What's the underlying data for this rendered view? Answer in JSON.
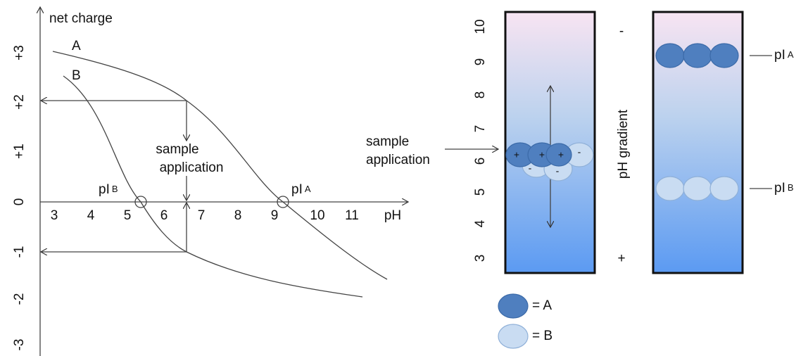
{
  "left_plot": {
    "y_axis_title": "net charge",
    "y_labels": [
      "+3",
      "+2",
      "+1",
      "0",
      "-1",
      "-2",
      "-3"
    ],
    "x_labels": [
      "3",
      "4",
      "5",
      "6",
      "7",
      "8",
      "9",
      "10",
      "11"
    ],
    "x_axis_title": "pH",
    "curve_a_label": "A",
    "curve_b_label": "B",
    "pi_b": {
      "main": "pI",
      "sub": "B"
    },
    "pi_a": {
      "main": "pI",
      "sub": "A"
    },
    "sample_application": [
      "sample",
      "application"
    ]
  },
  "right_gel": {
    "ph_labels": [
      "10",
      "9",
      "8",
      "7",
      "6",
      "5",
      "4",
      "3"
    ],
    "sample_application": [
      "sample",
      "application"
    ],
    "cathode": "-",
    "anode": "+",
    "gradient_label": "pH gradient",
    "charges": [
      "+",
      "+",
      "+",
      "-",
      "-",
      "-"
    ],
    "pi_a": {
      "main": "pI",
      "sub": "A"
    },
    "pi_b": {
      "main": "pI",
      "sub": "B"
    },
    "legend": [
      "= A",
      "= B"
    ]
  }
}
